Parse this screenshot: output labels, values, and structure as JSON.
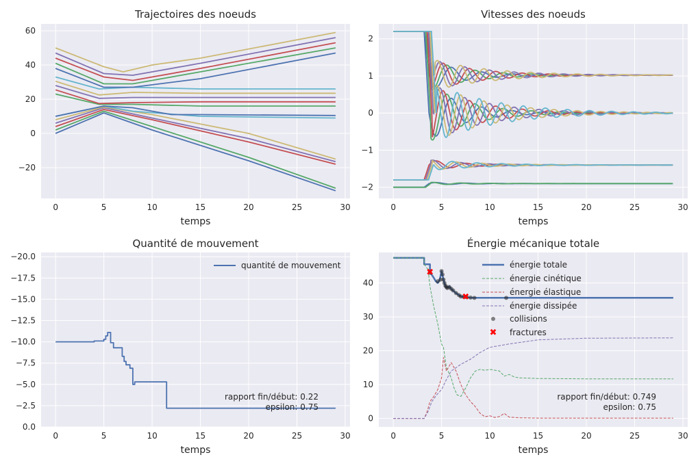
{
  "figure": {
    "colors": [
      "#4c72b0",
      "#55a868",
      "#c44e52",
      "#8172b2",
      "#ccb974",
      "#64b5cd"
    ],
    "plot_background": "#eaeaf2",
    "grid_color": "#ffffff"
  },
  "chart_data": [
    {
      "id": "trajectories",
      "type": "line",
      "title": "Trajectoires des noeuds",
      "xlabel": "temps",
      "ylabel": "",
      "xlim": [
        -1.5,
        30.5
      ],
      "ylim": [
        -38,
        64
      ],
      "xticks": [
        0,
        5,
        10,
        15,
        20,
        25,
        30
      ],
      "yticks": [
        -20,
        0,
        20,
        40,
        60
      ],
      "grid": true,
      "series": [
        {
          "color": "#4c72b0",
          "x": [
            0,
            5,
            10,
            20,
            29
          ],
          "y": [
            0,
            12,
            2,
            -16,
            -33.5
          ]
        },
        {
          "color": "#55a868",
          "x": [
            0,
            5,
            10,
            20,
            29
          ],
          "y": [
            2,
            13,
            4,
            -14,
            -32
          ]
        },
        {
          "color": "#c44e52",
          "x": [
            0,
            5,
            10,
            20,
            29
          ],
          "y": [
            4,
            14,
            8,
            -5,
            -18
          ]
        },
        {
          "color": "#8172b2",
          "x": [
            0,
            5,
            10,
            20,
            29
          ],
          "y": [
            6,
            15,
            9,
            -3,
            -16.5
          ]
        },
        {
          "color": "#ccb974",
          "x": [
            0,
            5,
            10,
            20,
            29
          ],
          "y": [
            8,
            15.5,
            11,
            0,
            -15
          ]
        },
        {
          "color": "#64b5cd",
          "x": [
            0,
            5,
            8,
            15,
            29
          ],
          "y": [
            10,
            16,
            13,
            10,
            9
          ]
        },
        {
          "color": "#4c72b0",
          "x": [
            0,
            5,
            8,
            12,
            15,
            29
          ],
          "y": [
            10,
            16,
            15,
            11,
            11,
            10.5
          ]
        },
        {
          "color": "#55a868",
          "x": [
            0,
            4.5,
            8,
            15,
            29
          ],
          "y": [
            23,
            17,
            17,
            16,
            16
          ]
        },
        {
          "color": "#c44e52",
          "x": [
            0,
            4.5,
            8,
            15,
            29
          ],
          "y": [
            25.5,
            17.5,
            18,
            18.5,
            18.5
          ]
        },
        {
          "color": "#8172b2",
          "x": [
            0,
            4.5,
            8,
            15,
            29
          ],
          "y": [
            28,
            20.5,
            21,
            21,
            21
          ]
        },
        {
          "color": "#ccb974",
          "x": [
            0,
            4.5,
            8,
            15,
            29
          ],
          "y": [
            30.5,
            22.5,
            24,
            23.5,
            23.5
          ]
        },
        {
          "color": "#64b5cd",
          "x": [
            0,
            4.5,
            8,
            15,
            29
          ],
          "y": [
            33,
            26,
            27,
            26,
            26
          ]
        },
        {
          "color": "#4c72b0",
          "x": [
            0,
            5,
            8,
            15,
            29
          ],
          "y": [
            38,
            27,
            27,
            32,
            47
          ]
        },
        {
          "color": "#55a868",
          "x": [
            0,
            5,
            8,
            15,
            29
          ],
          "y": [
            41,
            29,
            29,
            36,
            50
          ]
        },
        {
          "color": "#c44e52",
          "x": [
            0,
            5,
            8,
            15,
            29
          ],
          "y": [
            44,
            33,
            31,
            38,
            53
          ]
        },
        {
          "color": "#8172b2",
          "x": [
            0,
            5,
            8,
            15,
            29
          ],
          "y": [
            47,
            35,
            34,
            41,
            56
          ]
        },
        {
          "color": "#ccb974",
          "x": [
            0,
            5,
            7,
            10,
            15,
            29
          ],
          "y": [
            50,
            39,
            36,
            40,
            44,
            59
          ]
        }
      ]
    },
    {
      "id": "velocities",
      "type": "line",
      "title": "Vitesses des noeuds",
      "xlabel": "temps",
      "ylabel": "",
      "xlim": [
        -1.5,
        30.5
      ],
      "ylim": [
        -2.3,
        2.4
      ],
      "xticks": [
        0,
        5,
        10,
        15,
        20,
        25,
        30
      ],
      "yticks": [
        -2,
        -1,
        0,
        1,
        2
      ],
      "grid": true,
      "groups": [
        {
          "start": 2.2,
          "final": 1.02,
          "count": 5,
          "colors": [
            "#4c72b0",
            "#55a868",
            "#c44e52",
            "#8172b2",
            "#ccb974"
          ]
        },
        {
          "start": 2.2,
          "final": 0.0,
          "count": 6,
          "colors": [
            "#4c72b0",
            "#55a868",
            "#c44e52",
            "#8172b2",
            "#ccb974",
            "#64b5cd"
          ]
        },
        {
          "start": -1.8,
          "final": -1.4,
          "count": 4,
          "colors": [
            "#c44e52",
            "#8172b2",
            "#ccb974",
            "#64b5cd"
          ]
        },
        {
          "start": -2.0,
          "final": -1.9,
          "count": 2,
          "colors": [
            "#4c72b0",
            "#55a868"
          ]
        }
      ],
      "t_end": 29
    },
    {
      "id": "momentum",
      "type": "line",
      "title": "Quantité de mouvement",
      "xlabel": "temps",
      "ylabel": "",
      "xlim": [
        -1.5,
        30.5
      ],
      "ylim": [
        0,
        -20.5
      ],
      "xticks": [
        0,
        5,
        10,
        15,
        20,
        25,
        30
      ],
      "yticks": [
        0.0,
        -2.5,
        -5.0,
        -7.5,
        -10.0,
        -12.5,
        -15.0,
        -17.5,
        -20.0
      ],
      "ytick_labels": [
        "0.0",
        "−2.5",
        "−5.0",
        "−7.5",
        "−10.0",
        "−12.5",
        "−15.0",
        "−17.5",
        "−20.0"
      ],
      "grid": true,
      "legend": {
        "position": "top-right",
        "labels": [
          "quantité de mouvement"
        ]
      },
      "series": [
        {
          "name": "quantité de mouvement",
          "color": "#4c72b0",
          "x": [
            0,
            4,
            4,
            5.0,
            5.0,
            5.2,
            5.2,
            5.4,
            5.4,
            5.7,
            5.7,
            6.0,
            6.0,
            6.9,
            6.9,
            7.1,
            7.1,
            7.3,
            7.3,
            7.7,
            7.7,
            8.0,
            8.0,
            8.2,
            8.2,
            11.5,
            11.5,
            29
          ],
          "y": [
            -10,
            -10,
            -10.1,
            -10.1,
            -10.3,
            -10.3,
            -10.7,
            -10.7,
            -11.1,
            -11.1,
            -9.9,
            -9.9,
            -9.3,
            -9.3,
            -8.3,
            -8.3,
            -7.7,
            -7.7,
            -7.3,
            -7.3,
            -6.9,
            -6.9,
            -5.0,
            -5.0,
            -5.3,
            -5.3,
            -2.2,
            -2.2
          ]
        }
      ],
      "annotation": {
        "lines": [
          "rapport fin/début: 0.22",
          "epsilon: 0.75"
        ]
      }
    },
    {
      "id": "energy",
      "type": "line",
      "title": "Énergie mécanique totale",
      "xlabel": "temps",
      "ylabel": "",
      "xlim": [
        -1.5,
        30.5
      ],
      "ylim": [
        -2.5,
        49
      ],
      "xticks": [
        0,
        5,
        10,
        15,
        20,
        25,
        30
      ],
      "yticks": [
        0,
        10,
        20,
        30,
        40
      ],
      "grid": true,
      "legend": {
        "position": "top-center",
        "labels": [
          "énergie totale",
          "énergie cinétique",
          "énergie élastique",
          "énergie dissipée",
          "collisions",
          "fractures"
        ]
      },
      "series": [
        {
          "name": "énergie totale",
          "color": "#4c72b0",
          "style": "solid",
          "x": [
            0,
            3.2,
            3.2,
            3.8,
            3.8,
            4.2,
            4.4,
            4.6,
            4.8,
            5.0,
            5.2,
            5.4,
            5.6,
            5.8,
            6.0,
            6.5,
            7.0,
            7.5,
            8,
            29
          ],
          "y": [
            47.4,
            47.4,
            45.5,
            45.5,
            43.2,
            41.5,
            40.5,
            40.0,
            40.8,
            43.5,
            41.0,
            39.0,
            38.5,
            39.0,
            38.2,
            37.0,
            36.0,
            35.8,
            35.6,
            35.6
          ]
        },
        {
          "name": "énergie cinétique",
          "color": "#55a868",
          "style": "dashed",
          "x": [
            0,
            3.2,
            3.2,
            3.6,
            3.8,
            4.2,
            4.6,
            5.0,
            5.2,
            5.5,
            6.0,
            6.3,
            6.6,
            7.0,
            7.5,
            8.0,
            8.5,
            9.0,
            9.5,
            10.0,
            11.0,
            11.5,
            12.0,
            12.5,
            13.0,
            15,
            20,
            29
          ],
          "y": [
            47.4,
            47.4,
            45.5,
            44.0,
            39.0,
            33.0,
            28.0,
            22.0,
            21.0,
            15.0,
            12.0,
            9.0,
            7.0,
            6.5,
            9.0,
            12.0,
            14.0,
            14.5,
            14.2,
            14.5,
            14.0,
            12.5,
            13.0,
            12.3,
            12.0,
            11.8,
            11.7,
            11.7
          ]
        },
        {
          "name": "énergie élastique",
          "color": "#c44e52",
          "style": "dashed",
          "x": [
            0,
            3.2,
            3.5,
            3.8,
            4.2,
            4.6,
            5.0,
            5.2,
            5.5,
            6.0,
            6.5,
            7.0,
            7.5,
            8.0,
            8.5,
            9.0,
            9.5,
            10.0,
            10.5,
            11.0,
            11.5,
            12.0,
            13.0,
            15,
            29
          ],
          "y": [
            0,
            0,
            2.0,
            5.0,
            6.5,
            8.5,
            12.0,
            18.0,
            14.0,
            16.5,
            14.0,
            10.0,
            7.0,
            5.0,
            3.5,
            1.5,
            0.5,
            0.8,
            0.3,
            0.6,
            1.5,
            0.4,
            0.2,
            0.1,
            0.1
          ]
        },
        {
          "name": "énergie dissipée",
          "color": "#8172b2",
          "style": "dashed",
          "x": [
            0,
            3.2,
            3.6,
            4.0,
            4.5,
            5.0,
            5.5,
            6.0,
            7.0,
            8.0,
            9.0,
            10.0,
            12.0,
            15.0,
            20.0,
            29
          ],
          "y": [
            0,
            0,
            2.0,
            5.0,
            7.0,
            8.5,
            11.5,
            14.0,
            16.0,
            17.5,
            19.5,
            21.0,
            22.0,
            23.2,
            23.7,
            23.8
          ]
        }
      ],
      "collisions": {
        "color": "#262626",
        "x": [
          3.8,
          4.6,
          4.9,
          5.0,
          5.1,
          5.2,
          5.3,
          5.4,
          5.5,
          5.6,
          5.8,
          6.0,
          6.2,
          6.5,
          6.8,
          7.0,
          7.3,
          7.6,
          8.0,
          8.4,
          11.7
        ],
        "y": [
          43.0,
          40.5,
          41.0,
          43.5,
          42.5,
          41.0,
          40.0,
          39.2,
          38.8,
          38.5,
          38.8,
          38.3,
          37.8,
          37.0,
          36.4,
          36.0,
          35.9,
          35.8,
          35.7,
          35.6,
          35.6
        ]
      },
      "fractures": {
        "color": "#ff0000",
        "x": [
          3.8,
          7.5
        ],
        "y": [
          43.2,
          36.0
        ]
      },
      "annotation": {
        "lines": [
          "rapport fin/début: 0.749",
          "epsilon: 0.75"
        ]
      }
    }
  ]
}
